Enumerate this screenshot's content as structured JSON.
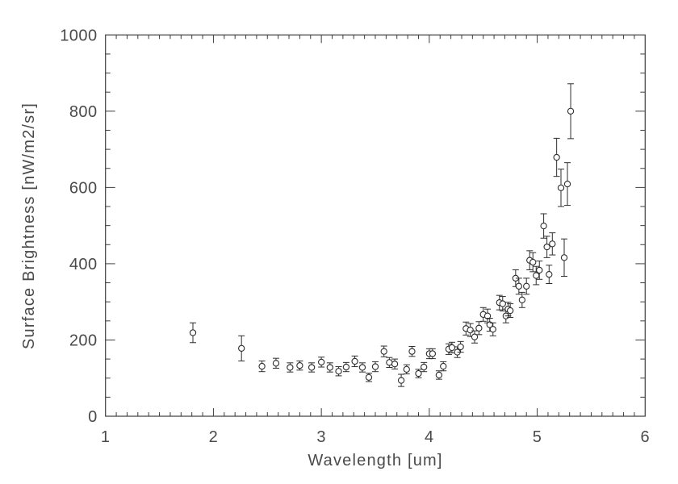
{
  "figure": {
    "background": "#ffffff",
    "axis_color": "#3d3d3d",
    "data_color": "#2d2d2d",
    "text_color": "#4a4a4a"
  },
  "chart_data": {
    "type": "scatter",
    "title": "",
    "xlabel": "Wavelength [um]",
    "ylabel": "Surface Brightness [nW/m2/sr]",
    "xlim": [
      1,
      6
    ],
    "ylim": [
      0,
      1000
    ],
    "x_major_ticks": [
      1,
      2,
      3,
      4,
      5,
      6
    ],
    "y_major_ticks": [
      0,
      200,
      400,
      600,
      800,
      1000
    ],
    "x_minor_step": 0.1,
    "y_minor_step": 50,
    "grid": false,
    "legend": null,
    "marker": "open-circle",
    "error_bars": true,
    "points": [
      {
        "x": 1.81,
        "y": 219,
        "err": 26
      },
      {
        "x": 2.26,
        "y": 178,
        "err": 33
      },
      {
        "x": 2.45,
        "y": 131,
        "err": 14
      },
      {
        "x": 2.58,
        "y": 139,
        "err": 13
      },
      {
        "x": 2.71,
        "y": 128,
        "err": 12
      },
      {
        "x": 2.8,
        "y": 133,
        "err": 12
      },
      {
        "x": 2.91,
        "y": 128,
        "err": 12
      },
      {
        "x": 3.0,
        "y": 142,
        "err": 13
      },
      {
        "x": 3.08,
        "y": 128,
        "err": 12
      },
      {
        "x": 3.16,
        "y": 118,
        "err": 12
      },
      {
        "x": 3.23,
        "y": 129,
        "err": 12
      },
      {
        "x": 3.31,
        "y": 144,
        "err": 14
      },
      {
        "x": 3.38,
        "y": 128,
        "err": 12
      },
      {
        "x": 3.44,
        "y": 102,
        "err": 11
      },
      {
        "x": 3.5,
        "y": 130,
        "err": 13
      },
      {
        "x": 3.58,
        "y": 170,
        "err": 14
      },
      {
        "x": 3.63,
        "y": 141,
        "err": 13
      },
      {
        "x": 3.68,
        "y": 137,
        "err": 13
      },
      {
        "x": 3.74,
        "y": 94,
        "err": 16
      },
      {
        "x": 3.79,
        "y": 123,
        "err": 12
      },
      {
        "x": 3.84,
        "y": 170,
        "err": 13
      },
      {
        "x": 3.9,
        "y": 112,
        "err": 11
      },
      {
        "x": 3.95,
        "y": 129,
        "err": 12
      },
      {
        "x": 4.0,
        "y": 164,
        "err": 13
      },
      {
        "x": 4.03,
        "y": 164,
        "err": 13
      },
      {
        "x": 4.09,
        "y": 108,
        "err": 11
      },
      {
        "x": 4.13,
        "y": 131,
        "err": 12
      },
      {
        "x": 4.18,
        "y": 176,
        "err": 14
      },
      {
        "x": 4.21,
        "y": 180,
        "err": 14
      },
      {
        "x": 4.26,
        "y": 168,
        "err": 14
      },
      {
        "x": 4.29,
        "y": 182,
        "err": 14
      },
      {
        "x": 4.34,
        "y": 230,
        "err": 17
      },
      {
        "x": 4.38,
        "y": 226,
        "err": 17
      },
      {
        "x": 4.42,
        "y": 208,
        "err": 16
      },
      {
        "x": 4.46,
        "y": 231,
        "err": 17
      },
      {
        "x": 4.5,
        "y": 267,
        "err": 18
      },
      {
        "x": 4.54,
        "y": 263,
        "err": 18
      },
      {
        "x": 4.56,
        "y": 240,
        "err": 17
      },
      {
        "x": 4.59,
        "y": 228,
        "err": 17
      },
      {
        "x": 4.65,
        "y": 298,
        "err": 19
      },
      {
        "x": 4.68,
        "y": 295,
        "err": 19
      },
      {
        "x": 4.71,
        "y": 263,
        "err": 18
      },
      {
        "x": 4.73,
        "y": 281,
        "err": 18
      },
      {
        "x": 4.75,
        "y": 277,
        "err": 18
      },
      {
        "x": 4.8,
        "y": 362,
        "err": 22
      },
      {
        "x": 4.83,
        "y": 341,
        "err": 21
      },
      {
        "x": 4.86,
        "y": 305,
        "err": 20
      },
      {
        "x": 4.9,
        "y": 341,
        "err": 21
      },
      {
        "x": 4.93,
        "y": 409,
        "err": 25
      },
      {
        "x": 4.96,
        "y": 404,
        "err": 25
      },
      {
        "x": 4.99,
        "y": 369,
        "err": 24
      },
      {
        "x": 5.02,
        "y": 383,
        "err": 24
      },
      {
        "x": 5.06,
        "y": 499,
        "err": 32
      },
      {
        "x": 5.09,
        "y": 444,
        "err": 28
      },
      {
        "x": 5.11,
        "y": 372,
        "err": 24
      },
      {
        "x": 5.14,
        "y": 452,
        "err": 29
      },
      {
        "x": 5.18,
        "y": 679,
        "err": 50
      },
      {
        "x": 5.22,
        "y": 599,
        "err": 49
      },
      {
        "x": 5.25,
        "y": 416,
        "err": 49
      },
      {
        "x": 5.28,
        "y": 609,
        "err": 56
      },
      {
        "x": 5.31,
        "y": 800,
        "err": 72
      }
    ]
  }
}
